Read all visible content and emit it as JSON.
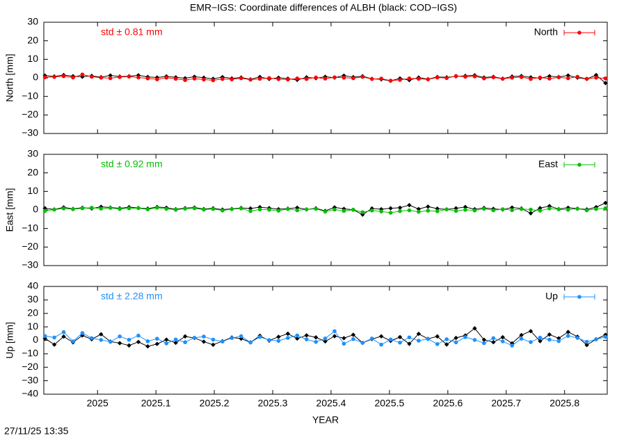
{
  "title": "EMR−IGS: Coordinate differences of ALBH (black: COD−IGS)",
  "timestamp": "27/11/25 13:35",
  "chart_data": [
    {
      "type": "scatter",
      "ylabel": "North [mm]",
      "annotation": "std ± 0.81 mm",
      "xlim": [
        2024.908,
        2025.873
      ],
      "xticks": [
        2025,
        2025.1,
        2025.2,
        2025.3,
        2025.4,
        2025.5,
        2025.6,
        2025.7,
        2025.8
      ],
      "ylim": [
        -30,
        30
      ],
      "yticks": [
        {
          "value": -30,
          "label": "−30"
        },
        {
          "value": -20,
          "label": "−20"
        },
        {
          "value": -10,
          "label": "−10"
        },
        0,
        10,
        20,
        30
      ],
      "x": [
        2024.91,
        2024.926,
        2024.942,
        2024.958,
        2024.974,
        2024.99,
        2025.006,
        2025.022,
        2025.038,
        2025.054,
        2025.07,
        2025.086,
        2025.102,
        2025.118,
        2025.134,
        2025.15,
        2025.166,
        2025.182,
        2025.198,
        2025.214,
        2025.23,
        2025.246,
        2025.262,
        2025.278,
        2025.294,
        2025.31,
        2025.326,
        2025.342,
        2025.358,
        2025.374,
        2025.39,
        2025.406,
        2025.422,
        2025.438,
        2025.454,
        2025.47,
        2025.486,
        2025.502,
        2025.518,
        2025.534,
        2025.55,
        2025.566,
        2025.582,
        2025.598,
        2025.614,
        2025.63,
        2025.646,
        2025.662,
        2025.678,
        2025.694,
        2025.71,
        2025.726,
        2025.742,
        2025.758,
        2025.774,
        2025.79,
        2025.806,
        2025.822,
        2025.838,
        2025.854,
        2025.87
      ],
      "series": [
        {
          "color": "#000000",
          "values": [
            1.2,
            0.8,
            1.5,
            0.9,
            0.6,
            1.1,
            0.4,
            1.3,
            0.7,
            0.9,
            1.4,
            0.5,
            0.2,
            0.8,
            0.3,
            -0.2,
            0.6,
            0.1,
            -0.5,
            0.4,
            -0.3,
            0.2,
            -0.8,
            0.5,
            -0.6,
            0.1,
            -0.4,
            -1.1,
            0.3,
            -0.2,
            0.6,
            0.1,
            1.2,
            0.4,
            0.9,
            -0.5,
            -0.8,
            -1.6,
            -0.3,
            -1.2,
            0.2,
            -0.7,
            0.5,
            0.3,
            0.8,
            1.1,
            1.4,
            0.2,
            0.6,
            -0.4,
            0.7,
            1.0,
            0.3,
            -0.2,
            0.9,
            0.5,
            1.3,
            0.1,
            -0.6,
            1.5,
            -2.8
          ]
        },
        {
          "name": "North",
          "color": "#ff0000",
          "values": [
            0.3,
            0.5,
            0.9,
            0.2,
            1.8,
            0.6,
            0.1,
            -0.2,
            0.4,
            0.7,
            0.2,
            -0.3,
            -0.8,
            0.1,
            -0.5,
            -1.2,
            -0.4,
            -0.9,
            -1.3,
            -0.6,
            -0.8,
            -0.2,
            -1.0,
            -0.5,
            -0.1,
            -0.7,
            -0.9,
            -0.3,
            -0.6,
            0.2,
            -0.4,
            0.3,
            0.1,
            -0.2,
            0.5,
            -0.6,
            -0.4,
            -1.5,
            -1.1,
            -0.3,
            -0.5,
            -0.8,
            0.2,
            -0.1,
            1.0,
            0.6,
            0.8,
            -0.3,
            0.3,
            -0.5,
            0.1,
            0.4,
            -0.6,
            0.2,
            -0.4,
            0.3,
            -0.2,
            0.6,
            -0.5,
            0.1,
            -0.3
          ]
        }
      ]
    },
    {
      "type": "scatter",
      "ylabel": "East [mm]",
      "annotation": "std ± 0.92 mm",
      "xlim": [
        2024.908,
        2025.873
      ],
      "xticks": [
        2025,
        2025.1,
        2025.2,
        2025.3,
        2025.4,
        2025.5,
        2025.6,
        2025.7,
        2025.8
      ],
      "ylim": [
        -30,
        30
      ],
      "yticks": [
        {
          "value": -30,
          "label": "−30"
        },
        {
          "value": -20,
          "label": "−20"
        },
        {
          "value": -10,
          "label": "−10"
        },
        0,
        10,
        20,
        30
      ],
      "x": [
        2024.91,
        2024.926,
        2024.942,
        2024.958,
        2024.974,
        2024.99,
        2025.006,
        2025.022,
        2025.038,
        2025.054,
        2025.07,
        2025.086,
        2025.102,
        2025.118,
        2025.134,
        2025.15,
        2025.166,
        2025.182,
        2025.198,
        2025.214,
        2025.23,
        2025.246,
        2025.262,
        2025.278,
        2025.294,
        2025.31,
        2025.326,
        2025.342,
        2025.358,
        2025.374,
        2025.39,
        2025.406,
        2025.422,
        2025.438,
        2025.454,
        2025.47,
        2025.486,
        2025.502,
        2025.518,
        2025.534,
        2025.55,
        2025.566,
        2025.582,
        2025.598,
        2025.614,
        2025.63,
        2025.646,
        2025.662,
        2025.678,
        2025.694,
        2025.71,
        2025.726,
        2025.742,
        2025.758,
        2025.774,
        2025.79,
        2025.806,
        2025.822,
        2025.838,
        2025.854,
        2025.87
      ],
      "series": [
        {
          "color": "#000000",
          "values": [
            0.9,
            0.3,
            1.4,
            0.6,
            1.2,
            0.8,
            1.7,
            1.3,
            0.9,
            1.5,
            1.1,
            0.7,
            1.6,
            1.2,
            0.4,
            1.0,
            1.3,
            0.5,
            0.9,
            0.2,
            0.6,
            1.1,
            0.8,
            1.5,
            1.0,
            0.4,
            0.7,
            1.2,
            0.3,
            0.9,
            -0.5,
            1.4,
            0.6,
            0.1,
            -2.5,
            0.8,
            0.4,
            0.9,
            1.2,
            2.6,
            0.5,
            1.8,
            0.7,
            0.3,
            0.9,
            1.6,
            0.4,
            1.1,
            0.6,
            0.2,
            1.3,
            0.8,
            -1.8,
            1.0,
            2.1,
            0.5,
            1.2,
            0.7,
            0.3,
            1.5,
            3.8
          ]
        },
        {
          "name": "East",
          "color": "#00c000",
          "values": [
            -0.5,
            0.2,
            0.8,
            0.4,
            0.9,
            1.2,
            0.7,
            1.1,
            0.5,
            0.9,
            1.0,
            0.3,
            1.2,
            0.6,
            0.1,
            0.7,
            0.9,
            0.2,
            0.5,
            -0.3,
            0.4,
            0.8,
            -0.6,
            0.3,
            0.1,
            -0.4,
            0.5,
            -0.2,
            0.3,
            0.6,
            -0.9,
            0.2,
            -0.5,
            0.1,
            -1.2,
            -0.3,
            -0.8,
            -1.5,
            -0.6,
            -0.2,
            -1.0,
            -0.4,
            -0.7,
            0.3,
            -0.5,
            0.1,
            -0.3,
            0.6,
            -0.2,
            0.4,
            -0.1,
            0.5,
            0.2,
            -0.4,
            0.8,
            0.3,
            0.1,
            0.7,
            -0.2,
            0.5,
            0.9
          ]
        }
      ]
    },
    {
      "type": "scatter",
      "ylabel": "Up [mm]",
      "xlabel": "YEAR",
      "annotation": "std ± 2.28 mm",
      "xlim": [
        2024.908,
        2025.873
      ],
      "xticks": [
        2025,
        2025.1,
        2025.2,
        2025.3,
        2025.4,
        2025.5,
        2025.6,
        2025.7,
        2025.8
      ],
      "ylim": [
        -40,
        40
      ],
      "yticks": [
        {
          "value": -40,
          "label": "−40"
        },
        {
          "value": -30,
          "label": "−30"
        },
        {
          "value": -20,
          "label": "−20"
        },
        {
          "value": -10,
          "label": "−10"
        },
        0,
        10,
        20,
        30,
        40
      ],
      "x": [
        2024.91,
        2024.926,
        2024.942,
        2024.958,
        2024.974,
        2024.99,
        2025.006,
        2025.022,
        2025.038,
        2025.054,
        2025.07,
        2025.086,
        2025.102,
        2025.118,
        2025.134,
        2025.15,
        2025.166,
        2025.182,
        2025.198,
        2025.214,
        2025.23,
        2025.246,
        2025.262,
        2025.278,
        2025.294,
        2025.31,
        2025.326,
        2025.342,
        2025.358,
        2025.374,
        2025.39,
        2025.406,
        2025.422,
        2025.438,
        2025.454,
        2025.47,
        2025.486,
        2025.502,
        2025.518,
        2025.534,
        2025.55,
        2025.566,
        2025.582,
        2025.598,
        2025.614,
        2025.63,
        2025.646,
        2025.662,
        2025.678,
        2025.694,
        2025.71,
        2025.726,
        2025.742,
        2025.758,
        2025.774,
        2025.79,
        2025.806,
        2025.822,
        2025.838,
        2025.854,
        2025.87
      ],
      "series": [
        {
          "color": "#000000",
          "values": [
            1.5,
            -3.2,
            2.8,
            -1.5,
            3.6,
            0.8,
            4.5,
            -0.9,
            -2.1,
            -3.8,
            -1.2,
            -4.5,
            -2.7,
            0.5,
            -1.8,
            2.9,
            1.7,
            -1.0,
            -3.3,
            -0.6,
            2.1,
            1.2,
            -1.5,
            3.4,
            -0.2,
            2.6,
            4.9,
            1.3,
            3.7,
            2.2,
            -0.8,
            3.1,
            1.6,
            4.1,
            -1.9,
            0.9,
            3.0,
            -0.4,
            2.4,
            -2.6,
            4.8,
            1.1,
            2.9,
            -3.1,
            1.8,
            3.6,
            8.9,
            0.4,
            -1.4,
            2.3,
            -2.2,
            3.9,
            6.8,
            -0.6,
            4.3,
            1.5,
            6.2,
            2.7,
            -3.5,
            0.8,
            4.1
          ]
        },
        {
          "name": "Up",
          "color": "#1e90ff",
          "values": [
            3.2,
            2.1,
            6.1,
            -0.8,
            5.4,
            1.6,
            0.3,
            -1.1,
            2.9,
            0.4,
            3.5,
            -0.7,
            1.2,
            -2.3,
            0.6,
            -1.4,
            1.9,
            2.8,
            0.5,
            -0.9,
            1.7,
            3.1,
            -1.6,
            2.5,
            0.2,
            -0.4,
            1.8,
            3.6,
            0.7,
            -1.2,
            1.4,
            6.8,
            -2.5,
            0.9,
            -1.8,
            1.3,
            -3.2,
            0.6,
            -1.7,
            2.2,
            -0.3,
            1.0,
            -2.8,
            0.8,
            -1.5,
            2.4,
            0.3,
            -2.1,
            1.6,
            -0.8,
            -3.9,
            1.2,
            -1.3,
            2.0,
            0.5,
            -0.6,
            3.3,
            1.8,
            -1.1,
            0.7,
            2.6
          ]
        }
      ]
    }
  ]
}
